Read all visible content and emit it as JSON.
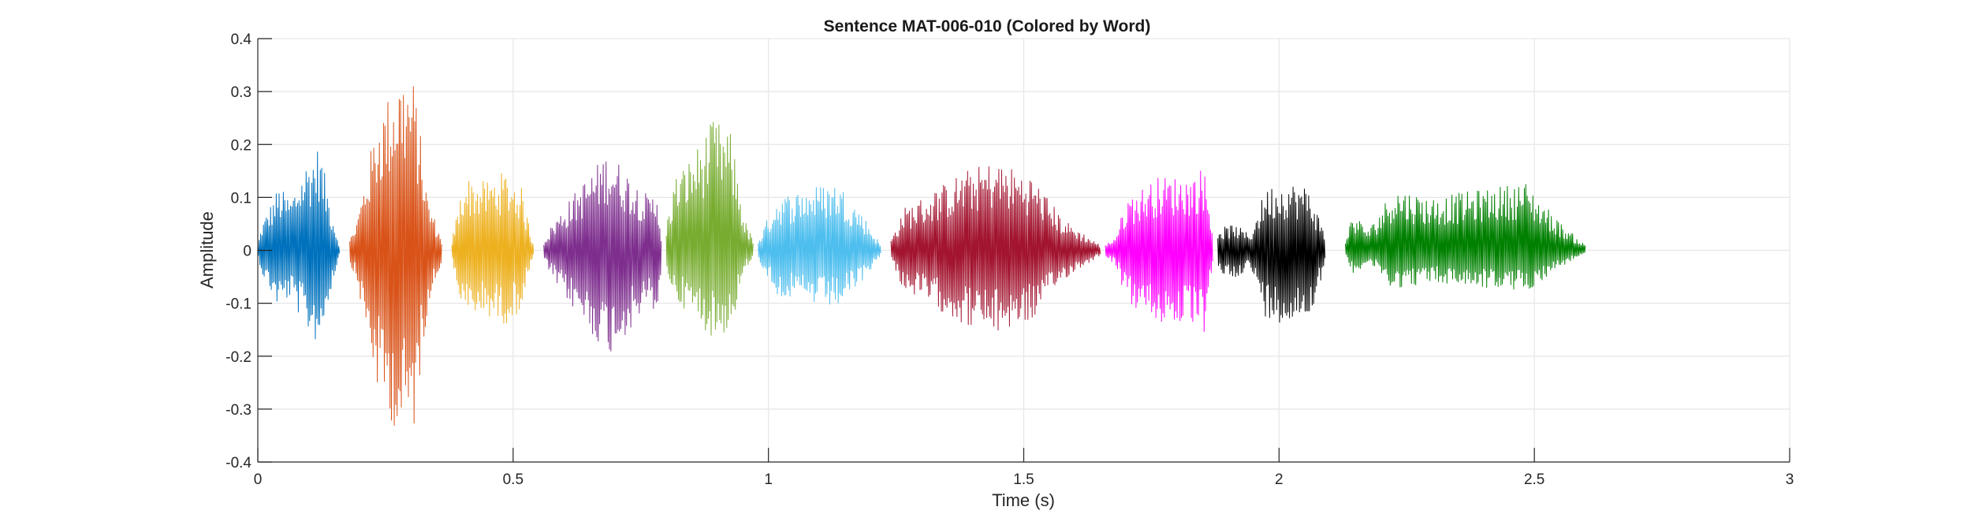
{
  "chart_data": {
    "type": "line",
    "title": "Sentence MAT-006-010 (Colored by Word)",
    "xlabel": "Time (s)",
    "ylabel": "Amplitude",
    "xlim": [
      0,
      3
    ],
    "ylim": [
      -0.4,
      0.4
    ],
    "xticks": [
      0,
      0.5,
      1,
      1.5,
      2,
      2.5,
      3
    ],
    "xtick_labels": [
      "0",
      "0.5",
      "1",
      "1.5",
      "2",
      "2.5",
      "3"
    ],
    "yticks": [
      -0.4,
      -0.3,
      -0.2,
      -0.1,
      0,
      0.1,
      0.2,
      0.3,
      0.4
    ],
    "ytick_labels": [
      "-0.4",
      "-0.3",
      "-0.2",
      "-0.1",
      "0",
      "0.1",
      "0.2",
      "0.3",
      "0.4"
    ],
    "grid": true,
    "legend": "none",
    "series": [
      {
        "color": "#0072BD",
        "x_start": 0.0,
        "x_end": 0.16,
        "peak_pos": 0.2,
        "peak_neg": -0.18,
        "envelope": [
          [
            0,
            0.01
          ],
          [
            0.05,
            0.05
          ],
          [
            0.25,
            0.12
          ],
          [
            0.4,
            0.1
          ],
          [
            0.6,
            0.17
          ],
          [
            0.75,
            0.2
          ],
          [
            0.9,
            0.08
          ],
          [
            1,
            0.01
          ]
        ]
      },
      {
        "color": "#D95319",
        "x_start": 0.18,
        "x_end": 0.36,
        "peak_pos": 0.33,
        "peak_neg": -0.35,
        "envelope": [
          [
            0,
            0.02
          ],
          [
            0.08,
            0.06
          ],
          [
            0.3,
            0.25
          ],
          [
            0.55,
            0.34
          ],
          [
            0.7,
            0.32
          ],
          [
            0.85,
            0.1
          ],
          [
            1,
            0.02
          ]
        ]
      },
      {
        "color": "#EDB120",
        "x_start": 0.38,
        "x_end": 0.54,
        "peak_pos": 0.16,
        "peak_neg": -0.15,
        "envelope": [
          [
            0,
            0.02
          ],
          [
            0.15,
            0.14
          ],
          [
            0.4,
            0.13
          ],
          [
            0.65,
            0.15
          ],
          [
            0.85,
            0.12
          ],
          [
            1,
            0.01
          ]
        ]
      },
      {
        "color": "#7E2F8E",
        "x_start": 0.56,
        "x_end": 0.79,
        "peak_pos": 0.18,
        "peak_neg": -0.19,
        "envelope": [
          [
            0,
            0.02
          ],
          [
            0.1,
            0.06
          ],
          [
            0.3,
            0.12
          ],
          [
            0.55,
            0.19
          ],
          [
            0.75,
            0.14
          ],
          [
            0.9,
            0.1
          ],
          [
            0.97,
            0.12
          ],
          [
            1,
            0.03
          ]
        ]
      },
      {
        "color": "#77AC30",
        "x_start": 0.8,
        "x_end": 0.97,
        "peak_pos": 0.25,
        "peak_neg": -0.17,
        "envelope": [
          [
            0,
            0.05
          ],
          [
            0.1,
            0.14
          ],
          [
            0.3,
            0.18
          ],
          [
            0.55,
            0.25
          ],
          [
            0.75,
            0.22
          ],
          [
            0.9,
            0.06
          ],
          [
            1,
            0.02
          ]
        ]
      },
      {
        "color": "#4DBEEE",
        "x_start": 0.98,
        "x_end": 1.22,
        "peak_pos": 0.13,
        "peak_neg": -0.11,
        "envelope": [
          [
            0,
            0.02
          ],
          [
            0.15,
            0.1
          ],
          [
            0.4,
            0.12
          ],
          [
            0.65,
            0.13
          ],
          [
            0.85,
            0.07
          ],
          [
            1,
            0.01
          ]
        ]
      },
      {
        "color": "#A2142F",
        "x_start": 1.24,
        "x_end": 1.65,
        "peak_pos": 0.17,
        "peak_neg": -0.16,
        "envelope": [
          [
            0,
            0.02
          ],
          [
            0.06,
            0.08
          ],
          [
            0.15,
            0.1
          ],
          [
            0.35,
            0.15
          ],
          [
            0.5,
            0.17
          ],
          [
            0.68,
            0.14
          ],
          [
            0.82,
            0.06
          ],
          [
            1,
            0.01
          ]
        ]
      },
      {
        "color": "#FF00FF",
        "x_start": 1.66,
        "x_end": 1.87,
        "peak_pos": 0.16,
        "peak_neg": -0.16,
        "envelope": [
          [
            0,
            0.01
          ],
          [
            0.1,
            0.03
          ],
          [
            0.2,
            0.1
          ],
          [
            0.5,
            0.14
          ],
          [
            0.8,
            0.14
          ],
          [
            0.92,
            0.16
          ],
          [
            1,
            0.04
          ]
        ]
      },
      {
        "color": "#000000",
        "x_start": 1.88,
        "x_end": 2.09,
        "peak_pos": 0.13,
        "peak_neg": -0.14,
        "envelope": [
          [
            0,
            0.04
          ],
          [
            0.15,
            0.05
          ],
          [
            0.3,
            0.03
          ],
          [
            0.45,
            0.12
          ],
          [
            0.65,
            0.13
          ],
          [
            0.85,
            0.12
          ],
          [
            1,
            0.03
          ]
        ]
      },
      {
        "color": "#008000",
        "x_start": 2.13,
        "x_end": 2.6,
        "peak_pos": 0.18,
        "peak_neg": -0.11,
        "envelope": [
          [
            0,
            0.02
          ],
          [
            0.03,
            0.07
          ],
          [
            0.1,
            0.04
          ],
          [
            0.2,
            0.12
          ],
          [
            0.35,
            0.1
          ],
          [
            0.5,
            0.11
          ],
          [
            0.75,
            0.13
          ],
          [
            0.9,
            0.05
          ],
          [
            1,
            0.01
          ]
        ]
      }
    ]
  }
}
